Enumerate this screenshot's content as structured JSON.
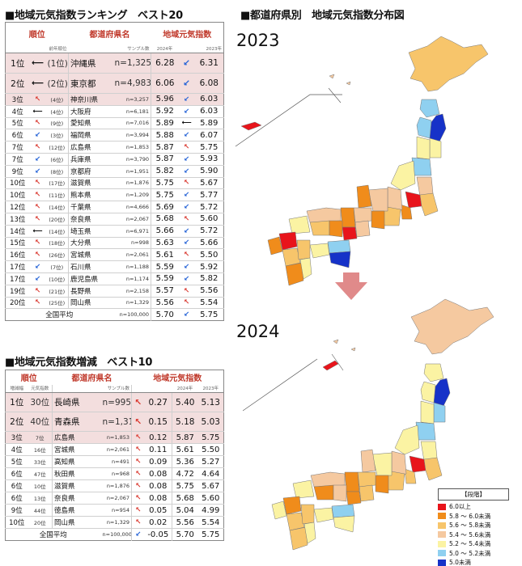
{
  "rank_title": "■地域元気指数ランキング　ベスト20",
  "rank_headers": {
    "rank": "順位",
    "pref": "都道府県名",
    "index": "地域元気指数",
    "prev_rank": "前年順位",
    "sample": "サンプル数",
    "y2024": "2024年",
    "y2023": "2023年"
  },
  "rank_rows": [
    {
      "rank": "1位",
      "arrow": "eq",
      "prev": "(1位)",
      "pref": "沖縄県",
      "n": "n=1,325",
      "v2024": "6.28",
      "trend": "dn",
      "v2023": "6.31"
    },
    {
      "rank": "2位",
      "arrow": "eq",
      "prev": "(2位)",
      "pref": "東京都",
      "n": "n=4,983",
      "v2024": "6.06",
      "trend": "dn",
      "v2023": "6.08"
    },
    {
      "rank": "3位",
      "arrow": "up",
      "prev": "(4位)",
      "pref": "神奈川県",
      "n": "n=3,257",
      "v2024": "5.96",
      "trend": "dn",
      "v2023": "6.03"
    },
    {
      "rank": "4位",
      "arrow": "eq",
      "prev": "(4位)",
      "pref": "大阪府",
      "n": "n=6,181",
      "v2024": "5.92",
      "trend": "dn",
      "v2023": "6.03"
    },
    {
      "rank": "5位",
      "arrow": "up",
      "prev": "(9位)",
      "pref": "愛知県",
      "n": "n=7,016",
      "v2024": "5.89",
      "trend": "eq",
      "v2023": "5.89"
    },
    {
      "rank": "6位",
      "arrow": "dn",
      "prev": "(3位)",
      "pref": "福岡県",
      "n": "n=3,994",
      "v2024": "5.88",
      "trend": "dn",
      "v2023": "6.07"
    },
    {
      "rank": "7位",
      "arrow": "up",
      "prev": "(12位)",
      "pref": "広島県",
      "n": "n=1,853",
      "v2024": "5.87",
      "trend": "up",
      "v2023": "5.75"
    },
    {
      "rank": "7位",
      "arrow": "dn",
      "prev": "(6位)",
      "pref": "兵庫県",
      "n": "n=3,790",
      "v2024": "5.87",
      "trend": "dn",
      "v2023": "5.93"
    },
    {
      "rank": "9位",
      "arrow": "dn",
      "prev": "(8位)",
      "pref": "京都府",
      "n": "n=1,951",
      "v2024": "5.82",
      "trend": "dn",
      "v2023": "5.90"
    },
    {
      "rank": "10位",
      "arrow": "up",
      "prev": "(17位)",
      "pref": "滋賀県",
      "n": "n=1,876",
      "v2024": "5.75",
      "trend": "up",
      "v2023": "5.67"
    },
    {
      "rank": "10位",
      "arrow": "up",
      "prev": "(11位)",
      "pref": "熊本県",
      "n": "n=1,209",
      "v2024": "5.75",
      "trend": "dn",
      "v2023": "5.77"
    },
    {
      "rank": "12位",
      "arrow": "up",
      "prev": "(14位)",
      "pref": "千葉県",
      "n": "n=4,666",
      "v2024": "5.69",
      "trend": "dn",
      "v2023": "5.72"
    },
    {
      "rank": "13位",
      "arrow": "up",
      "prev": "(20位)",
      "pref": "奈良県",
      "n": "n=2,067",
      "v2024": "5.68",
      "trend": "up",
      "v2023": "5.60"
    },
    {
      "rank": "14位",
      "arrow": "eq",
      "prev": "(14位)",
      "pref": "埼玉県",
      "n": "n=6,971",
      "v2024": "5.66",
      "trend": "dn",
      "v2023": "5.72"
    },
    {
      "rank": "15位",
      "arrow": "up",
      "prev": "(18位)",
      "pref": "大分県",
      "n": "n=998",
      "v2024": "5.63",
      "trend": "dn",
      "v2023": "5.66"
    },
    {
      "rank": "16位",
      "arrow": "up",
      "prev": "(26位)",
      "pref": "宮城県",
      "n": "n=2,061",
      "v2024": "5.61",
      "trend": "up",
      "v2023": "5.50"
    },
    {
      "rank": "17位",
      "arrow": "dn",
      "prev": "(7位)",
      "pref": "石川県",
      "n": "n=1,188",
      "v2024": "5.59",
      "trend": "dn",
      "v2023": "5.92"
    },
    {
      "rank": "17位",
      "arrow": "dn",
      "prev": "(10位)",
      "pref": "鹿児島県",
      "n": "n=1,174",
      "v2024": "5.59",
      "trend": "dn",
      "v2023": "5.82"
    },
    {
      "rank": "19位",
      "arrow": "up",
      "prev": "(21位)",
      "pref": "長野県",
      "n": "n=2,158",
      "v2024": "5.57",
      "trend": "up",
      "v2023": "5.56"
    },
    {
      "rank": "20位",
      "arrow": "up",
      "prev": "(25位)",
      "pref": "岡山県",
      "n": "n=1,329",
      "v2024": "5.56",
      "trend": "up",
      "v2023": "5.54"
    }
  ],
  "rank_avg": {
    "label": "全国平均",
    "n": "n=100,000",
    "v2024": "5.70",
    "trend": "dn",
    "v2023": "5.75"
  },
  "inc_title": "■地域元気指数増減　ベスト10",
  "inc_headers": {
    "rank": "順位",
    "pref": "都道府県名",
    "index": "地域元気指数",
    "delta_rank": "増減幅",
    "index_rank": "元気指数",
    "sample": "サンプル数",
    "y2024": "2024年",
    "y2023": "2023年"
  },
  "inc_rows": [
    {
      "rank": "1位",
      "idx_rank": "30位",
      "pref": "長崎県",
      "n": "n=995",
      "delta": "0.27",
      "v2024": "5.40",
      "v2023": "5.13"
    },
    {
      "rank": "2位",
      "idx_rank": "40位",
      "pref": "青森県",
      "n": "n=1,315",
      "delta": "0.15",
      "v2024": "5.18",
      "v2023": "5.03"
    },
    {
      "rank": "3位",
      "idx_rank": "7位",
      "pref": "広島県",
      "n": "n=1,853",
      "delta": "0.12",
      "v2024": "5.87",
      "v2023": "5.75"
    },
    {
      "rank": "4位",
      "idx_rank": "16位",
      "pref": "宮城県",
      "n": "n=2,061",
      "delta": "0.11",
      "v2024": "5.61",
      "v2023": "5.50"
    },
    {
      "rank": "5位",
      "idx_rank": "33位",
      "pref": "高知県",
      "n": "n=491",
      "delta": "0.09",
      "v2024": "5.36",
      "v2023": "5.27"
    },
    {
      "rank": "6位",
      "idx_rank": "47位",
      "pref": "秋田県",
      "n": "n=968",
      "delta": "0.08",
      "v2024": "4.72",
      "v2023": "4.64"
    },
    {
      "rank": "6位",
      "idx_rank": "10位",
      "pref": "滋賀県",
      "n": "n=1,876",
      "delta": "0.08",
      "v2024": "5.75",
      "v2023": "5.67"
    },
    {
      "rank": "6位",
      "idx_rank": "13位",
      "pref": "奈良県",
      "n": "n=2,067",
      "delta": "0.08",
      "v2024": "5.68",
      "v2023": "5.60"
    },
    {
      "rank": "9位",
      "idx_rank": "44位",
      "pref": "徳島県",
      "n": "n=954",
      "delta": "0.05",
      "v2024": "5.04",
      "v2023": "4.99"
    },
    {
      "rank": "10位",
      "idx_rank": "20位",
      "pref": "岡山県",
      "n": "n=1,329",
      "delta": "0.02",
      "v2024": "5.56",
      "v2023": "5.54"
    }
  ],
  "inc_avg": {
    "label": "全国平均",
    "n": "n=100,000",
    "delta": "-0.05",
    "v2024": "5.70",
    "v2023": "5.75"
  },
  "map_title": "■都道府県別　地域元気指数分布図",
  "year_top": "2023",
  "year_bottom": "2024",
  "legend": {
    "title": "【段階】",
    "items": [
      {
        "label": "6.0以上",
        "color": "#e8141b"
      },
      {
        "label": "5.8 ～ 6.0未満",
        "color": "#f08c1b"
      },
      {
        "label": "5.6 ～ 5.8未満",
        "color": "#f7c56b"
      },
      {
        "label": "5.4 ～ 5.6未満",
        "color": "#f5c9a0"
      },
      {
        "label": "5.2 ～ 5.4未満",
        "color": "#fbf3a3"
      },
      {
        "label": "5.0 ～ 5.2未満",
        "color": "#8fd0f0"
      },
      {
        "label": "5.0未満",
        "color": "#1632c8"
      }
    ]
  },
  "colors": {
    "arrow_up": "#d9342b",
    "arrow_down": "#1f5fd6",
    "header_text": "#c0392b",
    "highlight_row": "#f3dede",
    "transition_arrow": "#e08a8a"
  }
}
